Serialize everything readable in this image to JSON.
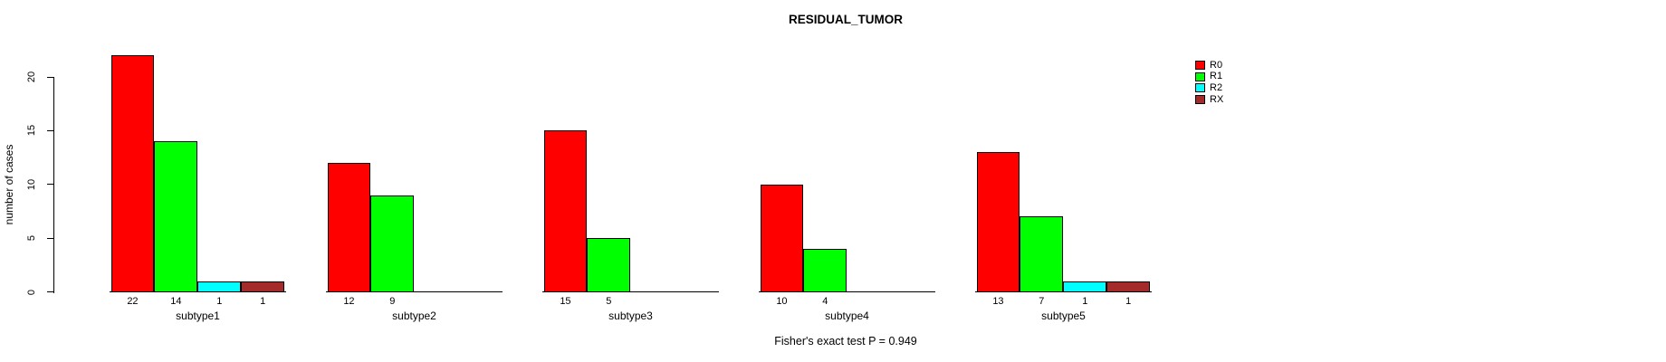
{
  "chart_data": {
    "type": "bar",
    "title": "RESIDUAL_TUMOR",
    "ylabel": "number of cases",
    "xlabel": "",
    "ylim": [
      0,
      20
    ],
    "yticks": [
      0,
      5,
      10,
      15,
      20
    ],
    "grid": false,
    "legend_position": "top-right",
    "categories": [
      "subtype1",
      "subtype2",
      "subtype3",
      "subtype4",
      "subtype5"
    ],
    "series": [
      {
        "name": "R0",
        "color": "#FF0000",
        "values": [
          22,
          12,
          15,
          10,
          13
        ]
      },
      {
        "name": "R1",
        "color": "#00FF00",
        "values": [
          14,
          9,
          5,
          4,
          7
        ]
      },
      {
        "name": "R2",
        "color": "#00FFFF",
        "values": [
          1,
          0,
          0,
          0,
          1
        ]
      },
      {
        "name": "RX",
        "color": "#A52A2A",
        "values": [
          1,
          0,
          0,
          0,
          1
        ]
      }
    ],
    "bar_value_labels": {
      "subtype1": [
        22,
        14,
        1,
        1
      ],
      "subtype2": [
        12,
        9,
        null,
        null
      ],
      "subtype3": [
        15,
        5,
        null,
        null
      ],
      "subtype4": [
        10,
        4,
        null,
        null
      ],
      "subtype5": [
        13,
        7,
        1,
        1
      ]
    },
    "annotation": "Fisher's exact test P = 0.949"
  },
  "colors": {
    "background": "#FFFFFF",
    "axis": "#000000",
    "text": "#000000"
  }
}
